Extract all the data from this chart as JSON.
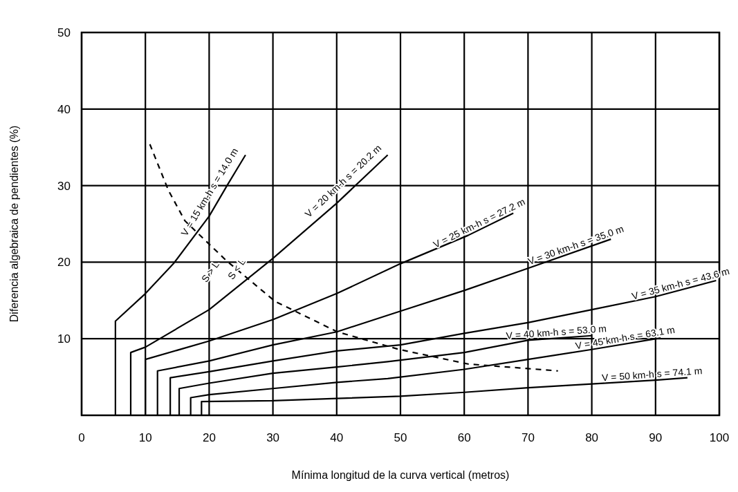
{
  "chart_data": {
    "type": "line",
    "xlabel": "Mínima longitud de la curva vertical (metros)",
    "ylabel": "Diferencia algebraica de pendientes (%)",
    "xlim": [
      0,
      100
    ],
    "ylim": [
      0,
      50
    ],
    "xticks": [
      0,
      10,
      20,
      30,
      40,
      50,
      60,
      70,
      80,
      90,
      100
    ],
    "yticks": [
      10,
      20,
      30,
      40,
      50
    ],
    "grid": true,
    "marker": "none",
    "series": [
      {
        "name": "V = 15 km-h   s = 14.0 m",
        "color": "#000000",
        "x": [
          5.3,
          5.3,
          10,
          14.4,
          20,
          22.8,
          25.7
        ],
        "values": [
          0,
          12.3,
          15.9,
          19.8,
          26,
          30,
          34
        ]
      },
      {
        "name": "V = 20 km-h   s = 20.2 m",
        "color": "#000000",
        "x": [
          7.7,
          7.7,
          10,
          20,
          30,
          40,
          48
        ],
        "values": [
          0,
          8.2,
          8.9,
          13.8,
          20.5,
          27.7,
          34
        ]
      },
      {
        "name": "V = 25 km-h   s = 27.2 m",
        "color": "#000000",
        "x": [
          10,
          10,
          20,
          30,
          40,
          50,
          60.6,
          67.7
        ],
        "values": [
          0,
          7.3,
          9.7,
          12.5,
          15.9,
          19.8,
          23.5,
          26.4
        ]
      },
      {
        "name": "V = 30 km-h   s = 35.0 m",
        "color": "#000000",
        "x": [
          11.9,
          11.9,
          20,
          30,
          40,
          50,
          60,
          70,
          83
        ],
        "values": [
          0,
          5.8,
          7.1,
          9.2,
          10.9,
          13.6,
          16.3,
          19.2,
          23
        ]
      },
      {
        "name": "V = 35 km-h   s = 43.6 m",
        "color": "#000000",
        "x": [
          13.9,
          13.9,
          20,
          30,
          40,
          50,
          60,
          70,
          80,
          90,
          99.5
        ],
        "values": [
          0,
          4.9,
          5.7,
          7.1,
          8.4,
          9.2,
          10.7,
          12.1,
          13.8,
          15.5,
          17.6
        ]
      },
      {
        "name": "V = 40 km-h   s = 53.0 m",
        "color": "#000000",
        "x": [
          15.3,
          15.3,
          20,
          30,
          40,
          48,
          60,
          70,
          80
        ],
        "values": [
          0,
          3.5,
          4.2,
          5.5,
          6.3,
          7,
          8.2,
          9.8,
          10.4
        ]
      },
      {
        "name": "V = 45 km-h   s = 63.1 m",
        "color": "#000000",
        "x": [
          17.1,
          17.1,
          20,
          30,
          40,
          48,
          60,
          70,
          80,
          90.8
        ],
        "values": [
          0,
          2.3,
          2.7,
          3.5,
          4.3,
          4.8,
          6,
          7.3,
          8.6,
          10.1
        ]
      },
      {
        "name": "V = 50 km-h   s = 74.1 m",
        "color": "#000000",
        "x": [
          18.8,
          18.8,
          30,
          40,
          50,
          60,
          70,
          80,
          90,
          95
        ],
        "values": [
          0,
          1.8,
          1.9,
          2.2,
          2.5,
          3,
          3.6,
          4.1,
          4.6,
          4.9
        ]
      },
      {
        "color": "#000000",
        "line_style": "dashed",
        "x": [
          10.7,
          13.6,
          16.2,
          22.7,
          30.3,
          40.1,
          46,
          49.8,
          60.6,
          74.7
        ],
        "values": [
          35.4,
          29.4,
          25.4,
          20.2,
          14.9,
          10.9,
          9.5,
          8.6,
          6.7,
          5.8
        ]
      }
    ],
    "annotations": [
      "S > L",
      "S < L"
    ]
  }
}
